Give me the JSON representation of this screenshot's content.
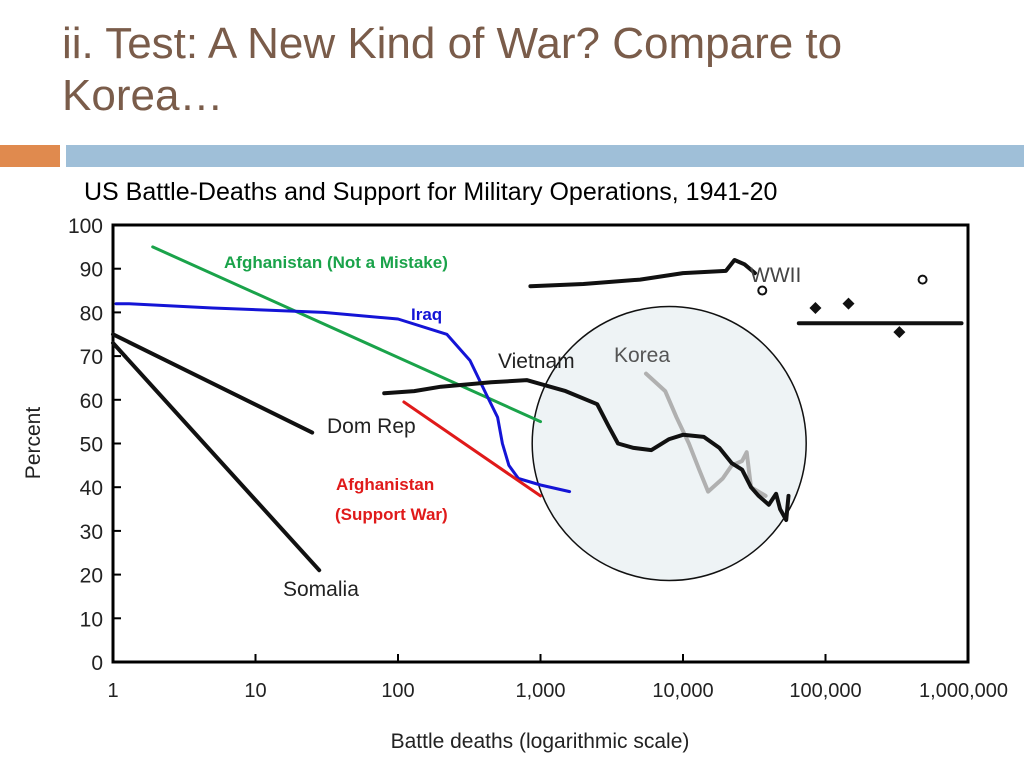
{
  "slide": {
    "title": "ii. Test: A New Kind of War? Compare to Korea…"
  },
  "colors": {
    "title": "#7a5c4a",
    "band_orange": "#e08a4e",
    "band_blue": "#9fbfd8",
    "afghanistan_green": "#1aa34a",
    "iraq_blue": "#1414d6",
    "afghanistan_red": "#e01a1a",
    "history_black": "#111111",
    "korea_gray": "#b0b0b0",
    "circle_fill": "#eef3f5"
  },
  "chart_data": {
    "type": "line",
    "title": "US Battle-Deaths and Support for Military Operations, 1941-20",
    "xlabel": "Battle deaths (logarithmic scale)",
    "ylabel": "Percent",
    "x_scale": "log",
    "xlim": [
      1,
      1000000
    ],
    "ylim": [
      0,
      100
    ],
    "x_ticks": [
      1,
      10,
      100,
      1000,
      10000,
      100000,
      1000000
    ],
    "x_tick_labels": [
      "1",
      "10",
      "100",
      "1,000",
      "10,000",
      "100,000",
      "1,000,000"
    ],
    "y_ticks": [
      0,
      10,
      20,
      30,
      40,
      50,
      60,
      70,
      80,
      90,
      100
    ],
    "y_tick_labels": [
      "0",
      "10",
      "20",
      "30",
      "40",
      "50",
      "60",
      "70",
      "80",
      "90",
      "100"
    ],
    "series": [
      {
        "name": "Afghanistan (Not a Mistake)",
        "color": "#1aa34a",
        "width": 3,
        "points": [
          [
            1.9,
            95
          ],
          [
            1000,
            55
          ]
        ]
      },
      {
        "name": "Iraq",
        "color": "#1414d6",
        "width": 3,
        "points": [
          [
            1.05,
            82
          ],
          [
            1.3,
            82
          ],
          [
            5,
            81
          ],
          [
            30,
            80
          ],
          [
            100,
            78.5
          ],
          [
            220,
            75
          ],
          [
            320,
            69
          ],
          [
            420,
            61
          ],
          [
            500,
            56
          ],
          [
            540,
            50
          ],
          [
            600,
            45
          ],
          [
            700,
            42
          ],
          [
            1000,
            40.5
          ],
          [
            1600,
            39
          ]
        ]
      },
      {
        "name": "Afghanistan (Support War)",
        "color": "#e01a1a",
        "width": 3,
        "points": [
          [
            110,
            59.5
          ],
          [
            1000,
            38
          ]
        ]
      },
      {
        "name": "Dom Rep",
        "color": "#111111",
        "width": 4,
        "points": [
          [
            1,
            75
          ],
          [
            25,
            52.5
          ]
        ]
      },
      {
        "name": "Somalia",
        "color": "#111111",
        "width": 4,
        "points": [
          [
            1,
            73
          ],
          [
            28,
            21
          ]
        ]
      },
      {
        "name": "Vietnam",
        "color": "#111111",
        "width": 4,
        "points": [
          [
            80,
            61.5
          ],
          [
            130,
            62
          ],
          [
            200,
            63
          ],
          [
            450,
            64
          ],
          [
            800,
            64.5
          ],
          [
            1500,
            62
          ],
          [
            2500,
            59
          ],
          [
            3000,
            54
          ],
          [
            3500,
            50
          ],
          [
            4500,
            49
          ],
          [
            6000,
            48.5
          ],
          [
            8000,
            51
          ],
          [
            10000,
            52
          ],
          [
            14000,
            51.5
          ],
          [
            18000,
            49
          ],
          [
            22000,
            45.5
          ],
          [
            26000,
            44
          ],
          [
            30000,
            40
          ],
          [
            34000,
            38
          ],
          [
            40000,
            36
          ],
          [
            45000,
            38.5
          ],
          [
            48000,
            35
          ],
          [
            53000,
            32.5
          ],
          [
            55000,
            38
          ]
        ]
      },
      {
        "name": "Korea",
        "color": "#b0b0b0",
        "width": 4,
        "points": [
          [
            5500,
            66
          ],
          [
            7500,
            62
          ],
          [
            9000,
            56
          ],
          [
            11000,
            50
          ],
          [
            13000,
            44
          ],
          [
            15000,
            39
          ],
          [
            19000,
            42
          ],
          [
            22000,
            45
          ],
          [
            26000,
            46
          ],
          [
            28000,
            48
          ],
          [
            30000,
            40
          ],
          [
            38000,
            38
          ]
        ]
      },
      {
        "name": "WWII",
        "color": "#111111",
        "width": 4,
        "points": [
          [
            850,
            86
          ],
          [
            2000,
            86.5
          ],
          [
            5000,
            87.5
          ],
          [
            10000,
            89
          ],
          [
            20000,
            89.5
          ],
          [
            23000,
            92
          ],
          [
            27000,
            91
          ],
          [
            32000,
            89
          ]
        ]
      },
      {
        "name": "",
        "color": "#111111",
        "width": 4,
        "points": [
          [
            65000,
            77.5
          ],
          [
            900000,
            77.5
          ]
        ]
      }
    ],
    "markers": [
      {
        "shape": "diamond",
        "x": 85000,
        "y": 81
      },
      {
        "shape": "diamond",
        "x": 145000,
        "y": 82
      },
      {
        "shape": "diamond",
        "x": 330000,
        "y": 75.5
      },
      {
        "shape": "open-circle",
        "x": 36000,
        "y": 85
      },
      {
        "shape": "open-circle",
        "x": 480000,
        "y": 87.5
      }
    ],
    "annotations": [
      {
        "text": "Afghanistan (Not a Mistake)",
        "x": 6000,
        "y": 92.5,
        "color": "#1aa34a",
        "weight": "bold",
        "size": 17,
        "anchor": "start"
      },
      {
        "text": "Iraq",
        "x": 180000,
        "y": 79,
        "color": "#1414d6",
        "weight": "bold",
        "size": 17,
        "anchor": "start"
      },
      {
        "text": "Afghanistan",
        "x": 6000,
        "y": 39,
        "color": "#e01a1a",
        "weight": "bold",
        "size": 17,
        "anchor": "start"
      },
      {
        "text": "(Support War)",
        "x": 6000,
        "y": 32.5,
        "color": "#e01a1a",
        "weight": "bold",
        "size": 17,
        "anchor": "start"
      },
      {
        "text": "Dom Rep",
        "x": 3000,
        "y": 48.5,
        "color": "#222222",
        "weight": "normal",
        "size": 21,
        "anchor": "start"
      },
      {
        "text": "Somalia",
        "x": 1500,
        "y": 15,
        "color": "#222222",
        "weight": "normal",
        "size": 21,
        "anchor": "start"
      },
      {
        "text": "Vietnam",
        "x": 250000,
        "y": 68,
        "color": "#222222",
        "weight": "normal",
        "size": 21,
        "anchor": "start"
      },
      {
        "text": "Korea",
        "x": 30000,
        "y": 69,
        "color": "#555555",
        "weight": "normal",
        "size": 21,
        "anchor": "start"
      },
      {
        "text": "WWII",
        "x": 300000,
        "y": 87.5,
        "color": "#444444",
        "weight": "normal",
        "size": 21,
        "anchor": "start"
      }
    ],
    "highlight_circle": {
      "x": 8000,
      "y": 50
    }
  }
}
